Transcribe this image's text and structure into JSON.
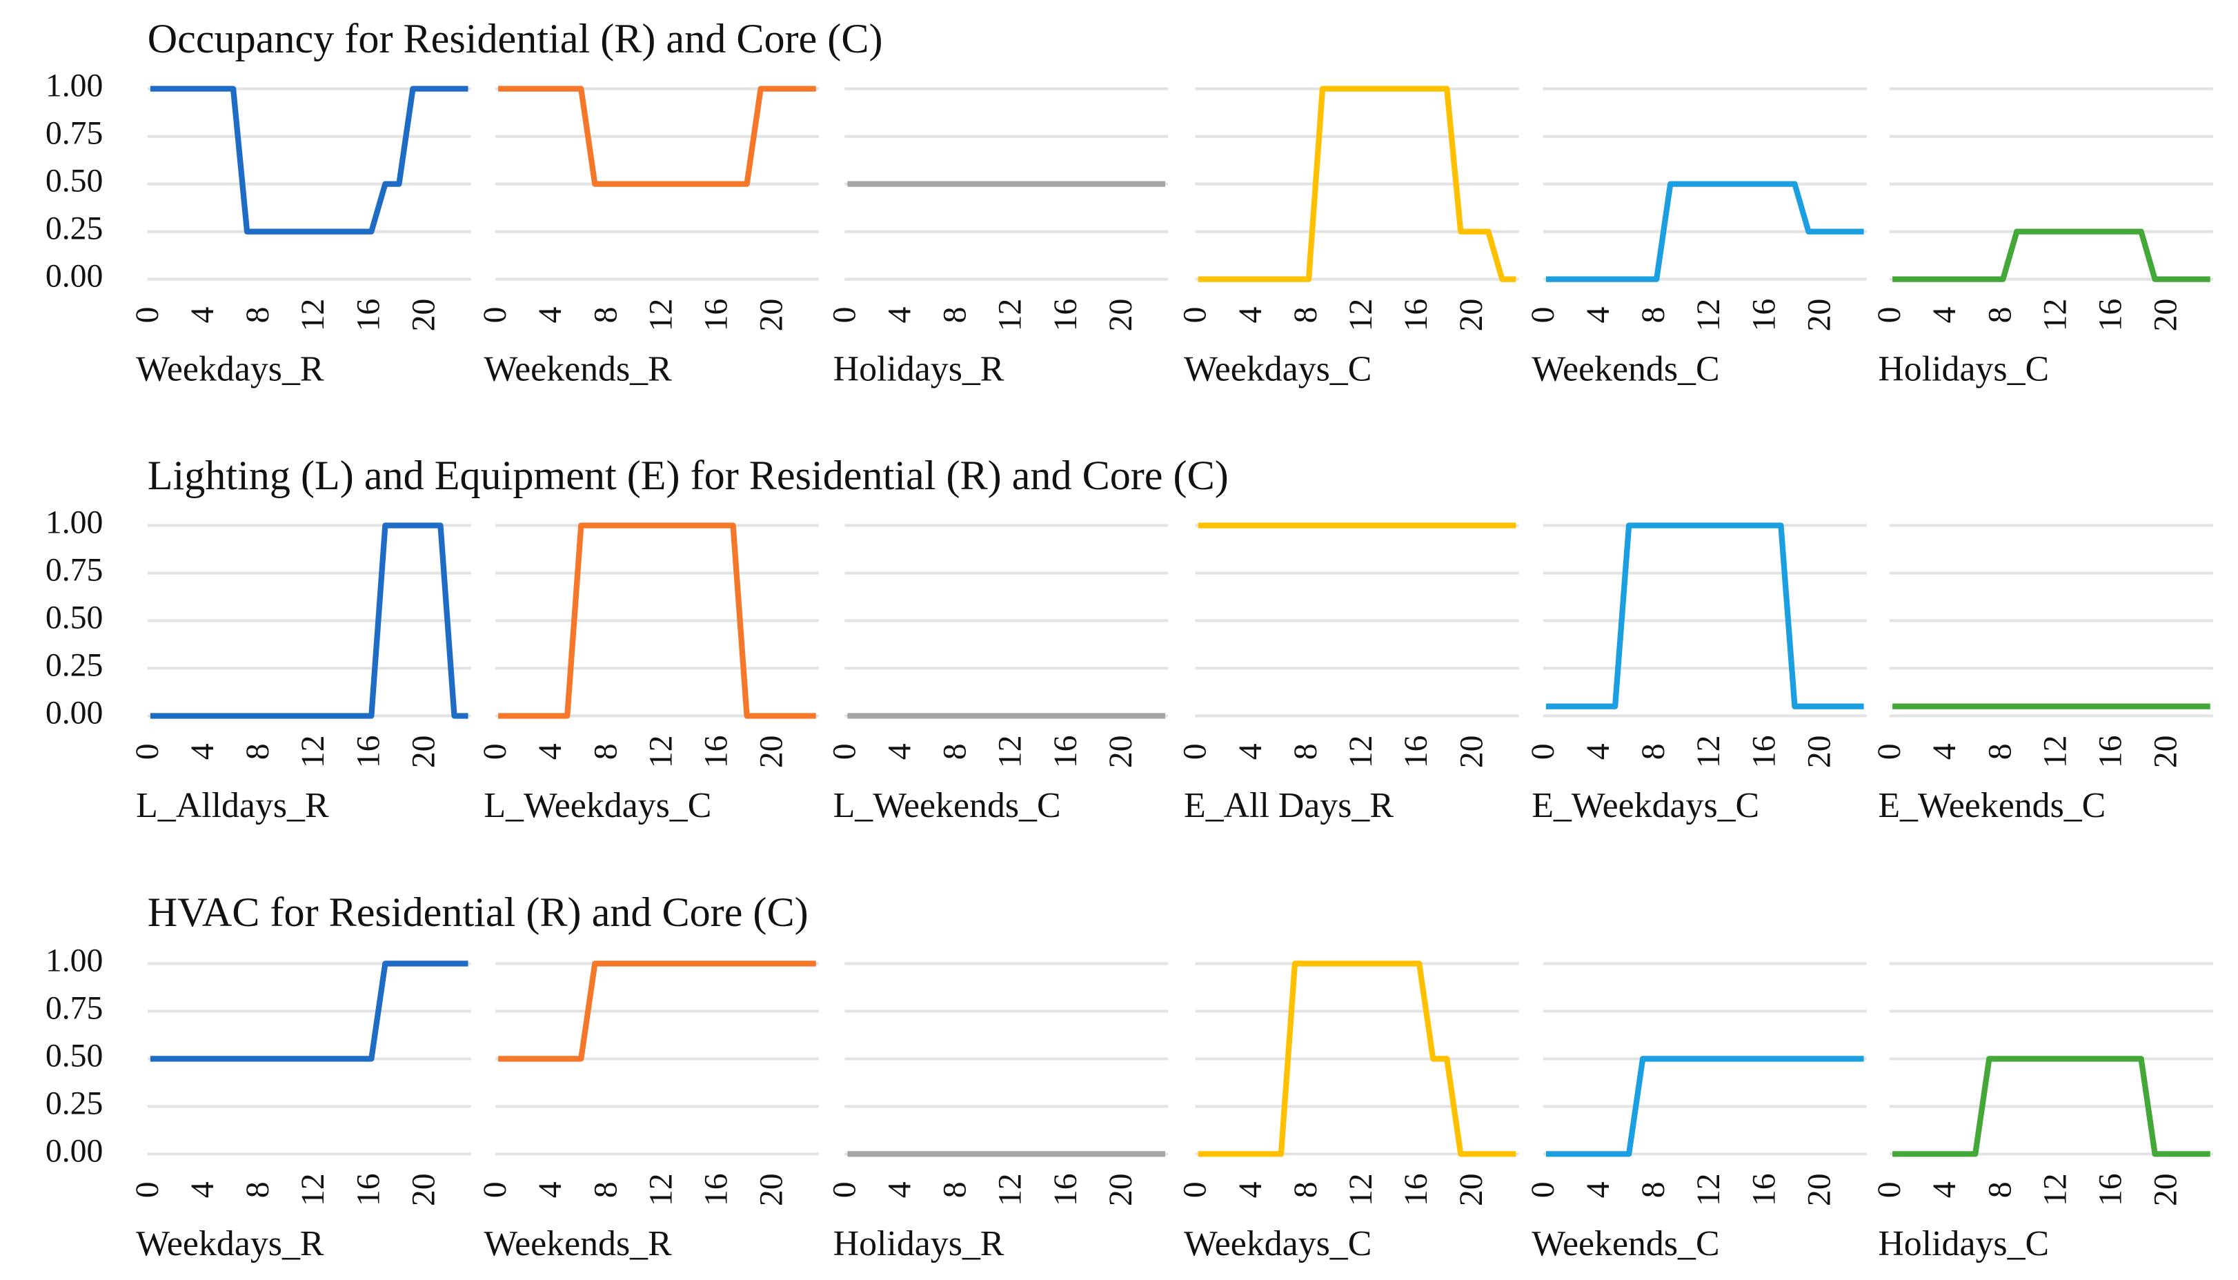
{
  "chart_data": [
    {
      "type": "line",
      "title": "Occupancy for Residential (R) and Core (C)",
      "x": [
        0,
        1,
        2,
        3,
        4,
        5,
        6,
        7,
        8,
        9,
        10,
        11,
        12,
        13,
        14,
        15,
        16,
        17,
        18,
        19,
        20,
        21,
        22,
        23
      ],
      "xlim": [
        0,
        23
      ],
      "xticks": [
        0,
        4,
        8,
        12,
        16,
        20
      ],
      "ylim": [
        0,
        1
      ],
      "yticks": [
        {
          "value": 0,
          "label": "0.00"
        },
        {
          "value": 0.25,
          "label": "0.25"
        },
        {
          "value": 0.5,
          "label": "0.50"
        },
        {
          "value": 0.75,
          "label": "0.75"
        },
        {
          "value": 1,
          "label": "1.00"
        }
      ],
      "grid": true,
      "series": [
        {
          "name": "Weekdays_R",
          "color": "#1f6cc4",
          "values": [
            1,
            1,
            1,
            1,
            1,
            1,
            1,
            0.25,
            0.25,
            0.25,
            0.25,
            0.25,
            0.25,
            0.25,
            0.25,
            0.25,
            0.25,
            0.5,
            0.5,
            1,
            1,
            1,
            1,
            1
          ]
        },
        {
          "name": "Weekends_R",
          "color": "#f5782a",
          "values": [
            1,
            1,
            1,
            1,
            1,
            1,
            1,
            0.5,
            0.5,
            0.5,
            0.5,
            0.5,
            0.5,
            0.5,
            0.5,
            0.5,
            0.5,
            0.5,
            0.5,
            1,
            1,
            1,
            1,
            1
          ]
        },
        {
          "name": "Holidays_R",
          "color": "#a6a6a6",
          "values": [
            0.5,
            0.5,
            0.5,
            0.5,
            0.5,
            0.5,
            0.5,
            0.5,
            0.5,
            0.5,
            0.5,
            0.5,
            0.5,
            0.5,
            0.5,
            0.5,
            0.5,
            0.5,
            0.5,
            0.5,
            0.5,
            0.5,
            0.5,
            0.5
          ]
        },
        {
          "name": "Weekdays_C",
          "color": "#ffc000",
          "values": [
            0,
            0,
            0,
            0,
            0,
            0,
            0,
            0,
            0,
            1,
            1,
            1,
            1,
            1,
            1,
            1,
            1,
            1,
            1,
            0.25,
            0.25,
            0.25,
            0,
            0
          ]
        },
        {
          "name": "Weekends_C",
          "color": "#1b9fe0",
          "values": [
            0,
            0,
            0,
            0,
            0,
            0,
            0,
            0,
            0,
            0.5,
            0.5,
            0.5,
            0.5,
            0.5,
            0.5,
            0.5,
            0.5,
            0.5,
            0.5,
            0.25,
            0.25,
            0.25,
            0.25,
            0.25
          ]
        },
        {
          "name": "Holidays_C",
          "color": "#43a838",
          "values": [
            0,
            0,
            0,
            0,
            0,
            0,
            0,
            0,
            0,
            0.25,
            0.25,
            0.25,
            0.25,
            0.25,
            0.25,
            0.25,
            0.25,
            0.25,
            0.25,
            0,
            0,
            0,
            0,
            0
          ]
        }
      ]
    },
    {
      "type": "line",
      "title": "Lighting (L) and Equipment (E) for Residential (R) and Core (C)",
      "x": [
        0,
        1,
        2,
        3,
        4,
        5,
        6,
        7,
        8,
        9,
        10,
        11,
        12,
        13,
        14,
        15,
        16,
        17,
        18,
        19,
        20,
        21,
        22,
        23
      ],
      "xlim": [
        0,
        23
      ],
      "xticks": [
        0,
        4,
        8,
        12,
        16,
        20
      ],
      "ylim": [
        0,
        1
      ],
      "yticks": [
        {
          "value": 0,
          "label": "0.00"
        },
        {
          "value": 0.25,
          "label": "0.25"
        },
        {
          "value": 0.5,
          "label": "0.50"
        },
        {
          "value": 0.75,
          "label": "0.75"
        },
        {
          "value": 1,
          "label": "1.00"
        }
      ],
      "grid": true,
      "series": [
        {
          "name": "L_Alldays_R",
          "color": "#1f6cc4",
          "values": [
            0,
            0,
            0,
            0,
            0,
            0,
            0,
            0,
            0,
            0,
            0,
            0,
            0,
            0,
            0,
            0,
            0,
            1,
            1,
            1,
            1,
            1,
            0,
            0
          ]
        },
        {
          "name": "L_Weekdays_C",
          "color": "#f5782a",
          "values": [
            0,
            0,
            0,
            0,
            0,
            0,
            1,
            1,
            1,
            1,
            1,
            1,
            1,
            1,
            1,
            1,
            1,
            1,
            0,
            0,
            0,
            0,
            0,
            0
          ]
        },
        {
          "name": "L_Weekends_C",
          "color": "#a6a6a6",
          "values": [
            0,
            0,
            0,
            0,
            0,
            0,
            0,
            0,
            0,
            0,
            0,
            0,
            0,
            0,
            0,
            0,
            0,
            0,
            0,
            0,
            0,
            0,
            0,
            0
          ]
        },
        {
          "name": "E_All Days_R",
          "color": "#ffc000",
          "values": [
            1,
            1,
            1,
            1,
            1,
            1,
            1,
            1,
            1,
            1,
            1,
            1,
            1,
            1,
            1,
            1,
            1,
            1,
            1,
            1,
            1,
            1,
            1,
            1
          ]
        },
        {
          "name": "E_Weekdays_C",
          "color": "#1b9fe0",
          "values": [
            0.05,
            0.05,
            0.05,
            0.05,
            0.05,
            0.05,
            1,
            1,
            1,
            1,
            1,
            1,
            1,
            1,
            1,
            1,
            1,
            1,
            0.05,
            0.05,
            0.05,
            0.05,
            0.05,
            0.05
          ]
        },
        {
          "name": "E_Weekends_C",
          "color": "#43a838",
          "values": [
            0.05,
            0.05,
            0.05,
            0.05,
            0.05,
            0.05,
            0.05,
            0.05,
            0.05,
            0.05,
            0.05,
            0.05,
            0.05,
            0.05,
            0.05,
            0.05,
            0.05,
            0.05,
            0.05,
            0.05,
            0.05,
            0.05,
            0.05,
            0.05
          ]
        }
      ]
    },
    {
      "type": "line",
      "title": "HVAC for Residential (R) and Core (C)",
      "x": [
        0,
        1,
        2,
        3,
        4,
        5,
        6,
        7,
        8,
        9,
        10,
        11,
        12,
        13,
        14,
        15,
        16,
        17,
        18,
        19,
        20,
        21,
        22,
        23
      ],
      "xlim": [
        0,
        23
      ],
      "xticks": [
        0,
        4,
        8,
        12,
        16,
        20
      ],
      "ylim": [
        0,
        1
      ],
      "yticks": [
        {
          "value": 0,
          "label": "0.00"
        },
        {
          "value": 0.25,
          "label": "0.25"
        },
        {
          "value": 0.5,
          "label": "0.50"
        },
        {
          "value": 0.75,
          "label": "0.75"
        },
        {
          "value": 1,
          "label": "1.00"
        }
      ],
      "grid": true,
      "series": [
        {
          "name": "Weekdays_R",
          "color": "#1f6cc4",
          "values": [
            0.5,
            0.5,
            0.5,
            0.5,
            0.5,
            0.5,
            0.5,
            0.5,
            0.5,
            0.5,
            0.5,
            0.5,
            0.5,
            0.5,
            0.5,
            0.5,
            0.5,
            1,
            1,
            1,
            1,
            1,
            1,
            1
          ]
        },
        {
          "name": "Weekends_R",
          "color": "#f5782a",
          "values": [
            0.5,
            0.5,
            0.5,
            0.5,
            0.5,
            0.5,
            0.5,
            1,
            1,
            1,
            1,
            1,
            1,
            1,
            1,
            1,
            1,
            1,
            1,
            1,
            1,
            1,
            1,
            1
          ]
        },
        {
          "name": "Holidays_R",
          "color": "#a6a6a6",
          "values": [
            0,
            0,
            0,
            0,
            0,
            0,
            0,
            0,
            0,
            0,
            0,
            0,
            0,
            0,
            0,
            0,
            0,
            0,
            0,
            0,
            0,
            0,
            0,
            0
          ]
        },
        {
          "name": "Weekdays_C",
          "color": "#ffc000",
          "values": [
            0,
            0,
            0,
            0,
            0,
            0,
            0,
            1,
            1,
            1,
            1,
            1,
            1,
            1,
            1,
            1,
            1,
            0.5,
            0.5,
            0,
            0,
            0,
            0,
            0
          ]
        },
        {
          "name": "Weekends_C",
          "color": "#1b9fe0",
          "values": [
            0,
            0,
            0,
            0,
            0,
            0,
            0,
            0.5,
            0.5,
            0.5,
            0.5,
            0.5,
            0.5,
            0.5,
            0.5,
            0.5,
            0.5,
            0.5,
            0.5,
            0.5,
            0.5,
            0.5,
            0.5,
            0.5
          ]
        },
        {
          "name": "Holidays_C",
          "color": "#43a838",
          "values": [
            0,
            0,
            0,
            0,
            0,
            0,
            0,
            0.5,
            0.5,
            0.5,
            0.5,
            0.5,
            0.5,
            0.5,
            0.5,
            0.5,
            0.5,
            0.5,
            0.5,
            0,
            0,
            0,
            0,
            0
          ]
        }
      ]
    }
  ]
}
